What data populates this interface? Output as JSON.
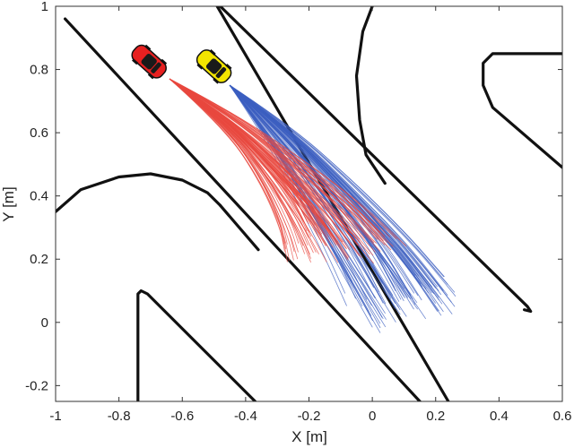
{
  "chart_data": {
    "type": "line",
    "xlabel": "X [m]",
    "ylabel": "Y [m]",
    "xlim": [
      -1,
      0.6
    ],
    "ylim": [
      -0.25,
      1
    ],
    "x_ticks": [
      -1,
      -0.8,
      -0.6,
      -0.4,
      -0.2,
      0,
      0.2,
      0.4,
      0.6
    ],
    "x_tick_labels": [
      "-1",
      "-0.8",
      "-0.6",
      "-0.4",
      "-0.2",
      "0",
      "0.2",
      "0.4",
      "0.6"
    ],
    "y_ticks": [
      -0.2,
      0,
      0.2,
      0.4,
      0.6,
      0.8,
      1
    ],
    "y_tick_labels": [
      "-0.2",
      "0",
      "0.2",
      "0.4",
      "0.6",
      "0.8",
      "1"
    ],
    "grid": false,
    "colors": {
      "red_series": "#e8483f",
      "blue_series": "#3c5fc0",
      "road": "#111111",
      "red_car": "#e62020",
      "yellow_car": "#f2e400"
    },
    "road_boundaries": [
      {
        "x": [
          -0.97,
          0.15
        ],
        "y": [
          0.96,
          -0.25
        ]
      },
      {
        "x": [
          -0.49,
          0.24
        ],
        "y": [
          1.0,
          -0.25
        ]
      },
      {
        "x": [
          -0.48,
          0.49,
          0.5,
          0.48
        ],
        "y": [
          1.0,
          0.05,
          0.035,
          0.04
        ]
      },
      {
        "x": [
          0.0,
          -0.03,
          -0.05,
          -0.04,
          -0.02,
          0.04
        ],
        "y": [
          1.0,
          0.92,
          0.78,
          0.64,
          0.53,
          0.44
        ]
      },
      {
        "x": [
          0.6,
          0.38,
          0.35,
          0.35,
          0.38,
          0.6
        ],
        "y": [
          0.85,
          0.85,
          0.82,
          0.75,
          0.68,
          0.49
        ]
      },
      {
        "x": [
          -1.0,
          -0.92,
          -0.8,
          -0.7,
          -0.6,
          -0.52,
          -0.48
        ],
        "y": [
          0.35,
          0.42,
          0.46,
          0.47,
          0.45,
          0.41,
          0.37
        ]
      },
      {
        "x": [
          -0.48,
          -0.36
        ],
        "y": [
          0.37,
          0.23
        ]
      },
      {
        "x": [
          -0.74,
          -0.74,
          -0.73,
          -0.71,
          -0.37
        ],
        "y": [
          -0.25,
          0.09,
          0.1,
          0.09,
          -0.25
        ]
      }
    ],
    "series": [
      {
        "car": "red",
        "start": [
          -0.64,
          0.77
        ],
        "rollouts": [
          [
            [
              -0.64,
              0.77
            ],
            [
              -0.5,
              0.67
            ],
            [
              -0.35,
              0.52
            ],
            [
              -0.25,
              0.4
            ],
            [
              -0.2,
              0.3
            ]
          ],
          [
            [
              -0.64,
              0.77
            ],
            [
              -0.48,
              0.66
            ],
            [
              -0.32,
              0.5
            ],
            [
              -0.18,
              0.36
            ],
            [
              -0.1,
              0.26
            ]
          ],
          [
            [
              -0.64,
              0.77
            ],
            [
              -0.45,
              0.64
            ],
            [
              -0.28,
              0.49
            ],
            [
              -0.12,
              0.34
            ],
            [
              -0.02,
              0.22
            ]
          ],
          [
            [
              -0.64,
              0.77
            ],
            [
              -0.44,
              0.66
            ],
            [
              -0.24,
              0.52
            ],
            [
              -0.06,
              0.38
            ],
            [
              0.08,
              0.24
            ]
          ],
          [
            [
              -0.64,
              0.77
            ],
            [
              -0.46,
              0.62
            ],
            [
              -0.34,
              0.45
            ],
            [
              -0.27,
              0.3
            ],
            [
              -0.25,
              0.22
            ]
          ]
        ]
      },
      {
        "car": "yellow",
        "start": [
          -0.45,
          0.75
        ],
        "rollouts": [
          [
            [
              -0.45,
              0.75
            ],
            [
              -0.3,
              0.62
            ],
            [
              -0.14,
              0.44
            ],
            [
              0.0,
              0.26
            ],
            [
              0.1,
              0.08
            ]
          ],
          [
            [
              -0.45,
              0.75
            ],
            [
              -0.27,
              0.62
            ],
            [
              -0.08,
              0.44
            ],
            [
              0.08,
              0.27
            ],
            [
              0.2,
              0.12
            ]
          ],
          [
            [
              -0.45,
              0.75
            ],
            [
              -0.32,
              0.58
            ],
            [
              -0.2,
              0.38
            ],
            [
              -0.08,
              0.18
            ],
            [
              0.03,
              0.0
            ]
          ],
          [
            [
              -0.45,
              0.75
            ],
            [
              -0.25,
              0.6
            ],
            [
              -0.05,
              0.4
            ],
            [
              0.12,
              0.22
            ],
            [
              0.24,
              0.06
            ]
          ],
          [
            [
              -0.45,
              0.75
            ],
            [
              -0.34,
              0.6
            ],
            [
              -0.24,
              0.42
            ],
            [
              -0.15,
              0.25
            ],
            [
              -0.08,
              0.1
            ]
          ]
        ]
      }
    ]
  }
}
